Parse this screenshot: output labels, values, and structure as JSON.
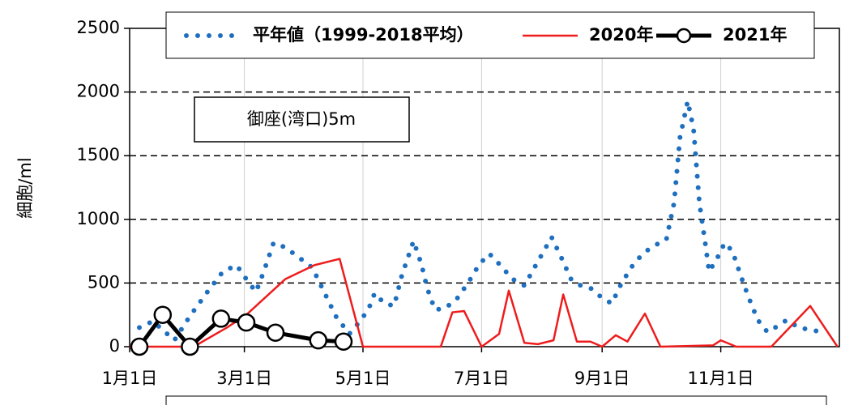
{
  "chart_data": {
    "type": "line",
    "ylabel": "細胞/ml",
    "annotation": "御座(湾口)5m",
    "xlim": [
      0,
      365
    ],
    "xticks": [
      {
        "value": 0,
        "label": "1月1日"
      },
      {
        "value": 59,
        "label": "3月1日"
      },
      {
        "value": 120,
        "label": "5月1日"
      },
      {
        "value": 181,
        "label": "7月1日"
      },
      {
        "value": 243,
        "label": "9月1日"
      },
      {
        "value": 304,
        "label": "11月1日"
      }
    ],
    "ylim": [
      0,
      2500
    ],
    "yticks": [
      0,
      500,
      1000,
      1500,
      2000,
      2500
    ],
    "grid": true,
    "legend": "top",
    "series": [
      {
        "name": "平年値（1999-2018平均）",
        "color": "#1f6fbf",
        "dash": "dotted",
        "x": [
          5,
          12,
          23,
          31,
          40,
          48,
          55,
          60,
          65,
          69,
          74,
          80,
          88,
          94,
          100,
          106,
          113,
          119,
          123,
          126,
          131,
          136,
          140,
          146,
          150,
          153,
          157,
          162,
          168,
          174,
          180,
          185,
          190,
          197,
          203,
          210,
          217,
          222,
          227,
          232,
          237,
          244,
          248,
          253,
          260,
          268,
          276,
          280,
          283,
          287,
          290,
          293,
          296,
          298,
          302,
          306,
          310,
          314,
          318,
          323,
          328,
          332,
          338,
          344,
          356
        ],
        "values": [
          150,
          200,
          50,
          240,
          430,
          590,
          640,
          530,
          430,
          590,
          815,
          780,
          690,
          620,
          430,
          240,
          100,
          210,
          300,
          420,
          340,
          320,
          560,
          830,
          650,
          460,
          290,
          300,
          370,
          500,
          650,
          730,
          650,
          530,
          480,
          670,
          860,
          700,
          530,
          480,
          460,
          370,
          340,
          500,
          670,
          780,
          840,
          1130,
          1640,
          1930,
          1710,
          1130,
          815,
          590,
          690,
          815,
          750,
          570,
          400,
          210,
          115,
          150,
          210,
          150,
          115
        ]
      },
      {
        "name": "2020年",
        "color": "#ee1c1c",
        "dash": "solid",
        "x": [
          0,
          33,
          50,
          60,
          80,
          95,
          108,
          120,
          160,
          166,
          172,
          181,
          190,
          195,
          203,
          210,
          218,
          223,
          230,
          237,
          243,
          250,
          256,
          265,
          273,
          300,
          304,
          312,
          330,
          350,
          364
        ],
        "values": [
          0,
          0,
          150,
          250,
          530,
          640,
          690,
          0,
          0,
          270,
          280,
          0,
          100,
          440,
          30,
          20,
          50,
          410,
          40,
          40,
          0,
          90,
          40,
          260,
          0,
          10,
          50,
          0,
          0,
          320,
          0
        ]
      },
      {
        "name": "2021年",
        "color": "#000000",
        "dash": "solid",
        "marker": "circle",
        "x": [
          5,
          17,
          31,
          47,
          60,
          75,
          97,
          110
        ],
        "values": [
          0,
          250,
          0,
          220,
          190,
          110,
          50,
          40
        ]
      }
    ]
  }
}
